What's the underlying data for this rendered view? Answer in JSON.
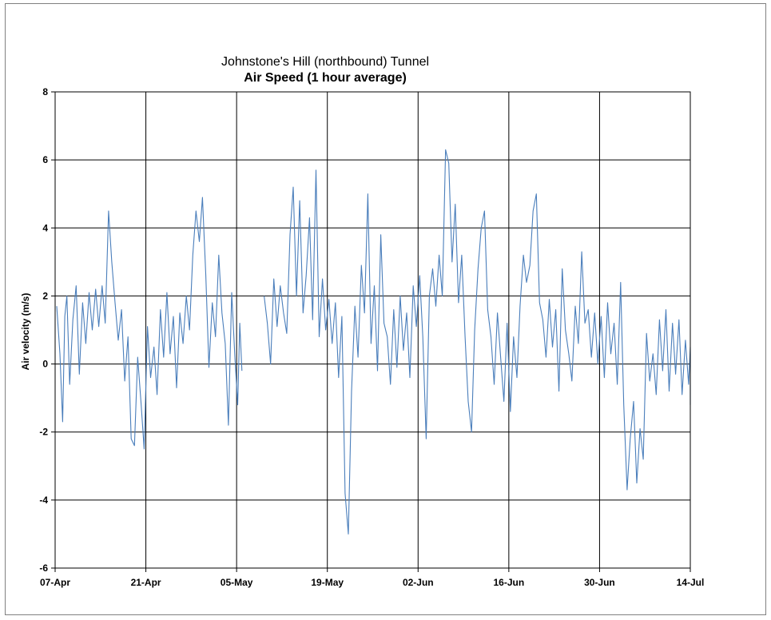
{
  "chart_data": {
    "type": "line",
    "title_line1": "Johnstone's Hill (northbound) Tunnel",
    "title_line2": "Air Speed (1 hour average)",
    "xlabel": "",
    "ylabel": "Air velocity (m/s)",
    "xlim": [
      "2011-04-07",
      "2011-07-14"
    ],
    "ylim": [
      -6,
      8
    ],
    "yticks": [
      -6,
      -4,
      -2,
      0,
      2,
      4,
      6,
      8
    ],
    "xtick_labels": [
      "07-Apr",
      "21-Apr",
      "05-May",
      "19-May",
      "02-Jun",
      "16-Jun",
      "30-Jun",
      "14-Jul"
    ],
    "xtick_dates": [
      "2011-04-07",
      "2011-04-21",
      "2011-05-05",
      "2011-05-19",
      "2011-06-02",
      "2011-06-16",
      "2011-06-30",
      "2011-07-14"
    ],
    "grid": true,
    "legend": "none",
    "series": [
      {
        "color": "#4a7ebb",
        "segments": [
          {
            "points": [
              [
                "2011-04-07",
                1.7
              ],
              [
                "2011-04-07",
                0.3
              ],
              [
                "2011-04-08",
                -1.7
              ],
              [
                "2011-04-08",
                1.4
              ],
              [
                "2011-04-08",
                2.0
              ],
              [
                "2011-04-09",
                -0.6
              ],
              [
                "2011-04-09",
                1.3
              ],
              [
                "2011-04-10",
                2.3
              ],
              [
                "2011-04-10",
                -0.3
              ],
              [
                "2011-04-11",
                1.8
              ],
              [
                "2011-04-11",
                0.6
              ],
              [
                "2011-04-12",
                2.1
              ],
              [
                "2011-04-12",
                1.0
              ],
              [
                "2011-04-13",
                2.2
              ],
              [
                "2011-04-13",
                1.1
              ],
              [
                "2011-04-14",
                2.3
              ],
              [
                "2011-04-14",
                1.2
              ],
              [
                "2011-04-15",
                4.5
              ],
              [
                "2011-04-15",
                3.0
              ],
              [
                "2011-04-16",
                1.8
              ],
              [
                "2011-04-16",
                0.7
              ],
              [
                "2011-04-17",
                1.6
              ],
              [
                "2011-04-17",
                -0.5
              ],
              [
                "2011-04-18",
                0.8
              ],
              [
                "2011-04-18",
                -2.2
              ],
              [
                "2011-04-19",
                -2.4
              ],
              [
                "2011-04-19",
                0.2
              ],
              [
                "2011-04-20",
                -1.1
              ],
              [
                "2011-04-20",
                -2.5
              ],
              [
                "2011-04-21",
                1.1
              ],
              [
                "2011-04-21",
                -0.4
              ],
              [
                "2011-04-22",
                0.5
              ],
              [
                "2011-04-22",
                -0.9
              ],
              [
                "2011-04-23",
                1.6
              ],
              [
                "2011-04-23",
                0.2
              ],
              [
                "2011-04-24",
                2.1
              ],
              [
                "2011-04-24",
                0.3
              ],
              [
                "2011-04-25",
                1.4
              ],
              [
                "2011-04-25",
                -0.7
              ],
              [
                "2011-04-26",
                1.5
              ],
              [
                "2011-04-26",
                0.6
              ],
              [
                "2011-04-27",
                2.0
              ],
              [
                "2011-04-27",
                1.0
              ],
              [
                "2011-04-28",
                3.2
              ],
              [
                "2011-04-28",
                4.5
              ],
              [
                "2011-04-29",
                3.6
              ],
              [
                "2011-04-29",
                4.9
              ],
              [
                "2011-04-30",
                2.6
              ],
              [
                "2011-04-30",
                -0.1
              ],
              [
                "2011-05-01",
                1.8
              ],
              [
                "2011-05-01",
                0.8
              ],
              [
                "2011-05-02",
                3.2
              ],
              [
                "2011-05-02",
                1.5
              ],
              [
                "2011-05-03",
                0.6
              ],
              [
                "2011-05-03",
                -1.8
              ],
              [
                "2011-05-04",
                2.1
              ],
              [
                "2011-05-04",
                0.2
              ],
              [
                "2011-05-05",
                -1.2
              ],
              [
                "2011-05-05",
                1.2
              ],
              [
                "2011-05-05",
                -0.2
              ]
            ]
          },
          {
            "points": [
              [
                "2011-05-09",
                2.0
              ],
              [
                "2011-05-09",
                1.2
              ],
              [
                "2011-05-10",
                0.0
              ],
              [
                "2011-05-10",
                2.5
              ],
              [
                "2011-05-11",
                1.1
              ],
              [
                "2011-05-11",
                2.3
              ],
              [
                "2011-05-12",
                1.5
              ],
              [
                "2011-05-12",
                0.9
              ],
              [
                "2011-05-13",
                3.8
              ],
              [
                "2011-05-13",
                5.2
              ],
              [
                "2011-05-14",
                2.0
              ],
              [
                "2011-05-14",
                4.8
              ],
              [
                "2011-05-15",
                1.5
              ],
              [
                "2011-05-15",
                2.6
              ],
              [
                "2011-05-16",
                4.3
              ],
              [
                "2011-05-16",
                1.3
              ],
              [
                "2011-05-17",
                5.7
              ],
              [
                "2011-05-17",
                0.8
              ],
              [
                "2011-05-18",
                2.5
              ],
              [
                "2011-05-18",
                1.0
              ],
              [
                "2011-05-19",
                1.9
              ],
              [
                "2011-05-19",
                0.6
              ],
              [
                "2011-05-20",
                1.8
              ],
              [
                "2011-05-20",
                -0.4
              ],
              [
                "2011-05-21",
                1.4
              ],
              [
                "2011-05-21",
                -3.8
              ],
              [
                "2011-05-22",
                -5.0
              ],
              [
                "2011-05-22",
                -0.8
              ],
              [
                "2011-05-23",
                1.7
              ],
              [
                "2011-05-23",
                0.2
              ],
              [
                "2011-05-24",
                2.9
              ],
              [
                "2011-05-24",
                1.5
              ],
              [
                "2011-05-25",
                5.0
              ],
              [
                "2011-05-25",
                0.6
              ],
              [
                "2011-05-26",
                2.3
              ],
              [
                "2011-05-26",
                -0.2
              ],
              [
                "2011-05-27",
                3.8
              ],
              [
                "2011-05-27",
                1.2
              ],
              [
                "2011-05-28",
                0.8
              ],
              [
                "2011-05-28",
                -0.6
              ],
              [
                "2011-05-29",
                1.6
              ],
              [
                "2011-05-29",
                -0.1
              ],
              [
                "2011-05-30",
                2.0
              ],
              [
                "2011-05-30",
                0.4
              ],
              [
                "2011-05-31",
                1.5
              ],
              [
                "2011-05-31",
                -0.4
              ],
              [
                "2011-06-01",
                2.3
              ],
              [
                "2011-06-01",
                1.1
              ],
              [
                "2011-06-02",
                2.6
              ],
              [
                "2011-06-02",
                0.8
              ],
              [
                "2011-06-03",
                -2.2
              ],
              [
                "2011-06-03",
                2.0
              ],
              [
                "2011-06-04",
                2.8
              ],
              [
                "2011-06-04",
                1.7
              ],
              [
                "2011-06-05",
                3.2
              ],
              [
                "2011-06-05",
                2.0
              ],
              [
                "2011-06-06",
                6.3
              ],
              [
                "2011-06-06",
                5.9
              ],
              [
                "2011-06-07",
                3.0
              ],
              [
                "2011-06-07",
                4.7
              ],
              [
                "2011-06-08",
                1.8
              ],
              [
                "2011-06-08",
                3.2
              ],
              [
                "2011-06-09",
                0.8
              ],
              [
                "2011-06-09",
                -1.1
              ],
              [
                "2011-06-10",
                -2.0
              ],
              [
                "2011-06-10",
                1.0
              ],
              [
                "2011-06-11",
                2.8
              ],
              [
                "2011-06-11",
                4.0
              ],
              [
                "2011-06-12",
                4.5
              ],
              [
                "2011-06-12",
                1.6
              ],
              [
                "2011-06-13",
                0.8
              ],
              [
                "2011-06-13",
                -0.6
              ],
              [
                "2011-06-14",
                1.5
              ],
              [
                "2011-06-14",
                0.2
              ],
              [
                "2011-06-15",
                -1.1
              ],
              [
                "2011-06-15",
                1.2
              ],
              [
                "2011-06-16",
                -1.4
              ],
              [
                "2011-06-16",
                0.8
              ],
              [
                "2011-06-17",
                -0.4
              ],
              [
                "2011-06-17",
                1.7
              ],
              [
                "2011-06-18",
                3.2
              ],
              [
                "2011-06-18",
                2.4
              ],
              [
                "2011-06-19",
                2.9
              ],
              [
                "2011-06-19",
                4.5
              ],
              [
                "2011-06-20",
                5.0
              ],
              [
                "2011-06-20",
                1.8
              ],
              [
                "2011-06-21",
                1.3
              ],
              [
                "2011-06-21",
                0.2
              ],
              [
                "2011-06-22",
                1.9
              ],
              [
                "2011-06-22",
                0.5
              ],
              [
                "2011-06-23",
                1.6
              ],
              [
                "2011-06-23",
                -0.8
              ],
              [
                "2011-06-24",
                2.8
              ],
              [
                "2011-06-24",
                1.0
              ],
              [
                "2011-06-25",
                0.3
              ],
              [
                "2011-06-25",
                -0.5
              ],
              [
                "2011-06-26",
                1.7
              ],
              [
                "2011-06-26",
                0.6
              ],
              [
                "2011-06-27",
                3.3
              ],
              [
                "2011-06-27",
                1.2
              ],
              [
                "2011-06-28",
                1.6
              ],
              [
                "2011-06-28",
                0.2
              ],
              [
                "2011-06-29",
                1.5
              ],
              [
                "2011-06-29",
                0.0
              ],
              [
                "2011-06-30",
                1.4
              ],
              [
                "2011-06-30",
                -0.4
              ],
              [
                "2011-07-01",
                1.8
              ],
              [
                "2011-07-01",
                0.3
              ],
              [
                "2011-07-02",
                1.2
              ],
              [
                "2011-07-02",
                -0.6
              ],
              [
                "2011-07-03",
                2.4
              ],
              [
                "2011-07-03",
                -1.2
              ],
              [
                "2011-07-04",
                -3.7
              ],
              [
                "2011-07-04",
                -2.2
              ],
              [
                "2011-07-05",
                -1.1
              ],
              [
                "2011-07-05",
                -3.5
              ],
              [
                "2011-07-06",
                -1.9
              ],
              [
                "2011-07-06",
                -2.8
              ],
              [
                "2011-07-07",
                0.9
              ],
              [
                "2011-07-07",
                -0.5
              ],
              [
                "2011-07-08",
                0.3
              ],
              [
                "2011-07-08",
                -0.9
              ],
              [
                "2011-07-09",
                1.3
              ],
              [
                "2011-07-09",
                -0.2
              ],
              [
                "2011-07-10",
                1.6
              ],
              [
                "2011-07-10",
                -0.8
              ],
              [
                "2011-07-11",
                1.2
              ],
              [
                "2011-07-11",
                -0.3
              ],
              [
                "2011-07-12",
                1.3
              ],
              [
                "2011-07-12",
                -0.9
              ],
              [
                "2011-07-13",
                0.7
              ],
              [
                "2011-07-13",
                -0.6
              ],
              [
                "2011-07-14",
                0.5
              ],
              [
                "2011-07-14",
                -1.2
              ]
            ]
          }
        ]
      }
    ]
  }
}
